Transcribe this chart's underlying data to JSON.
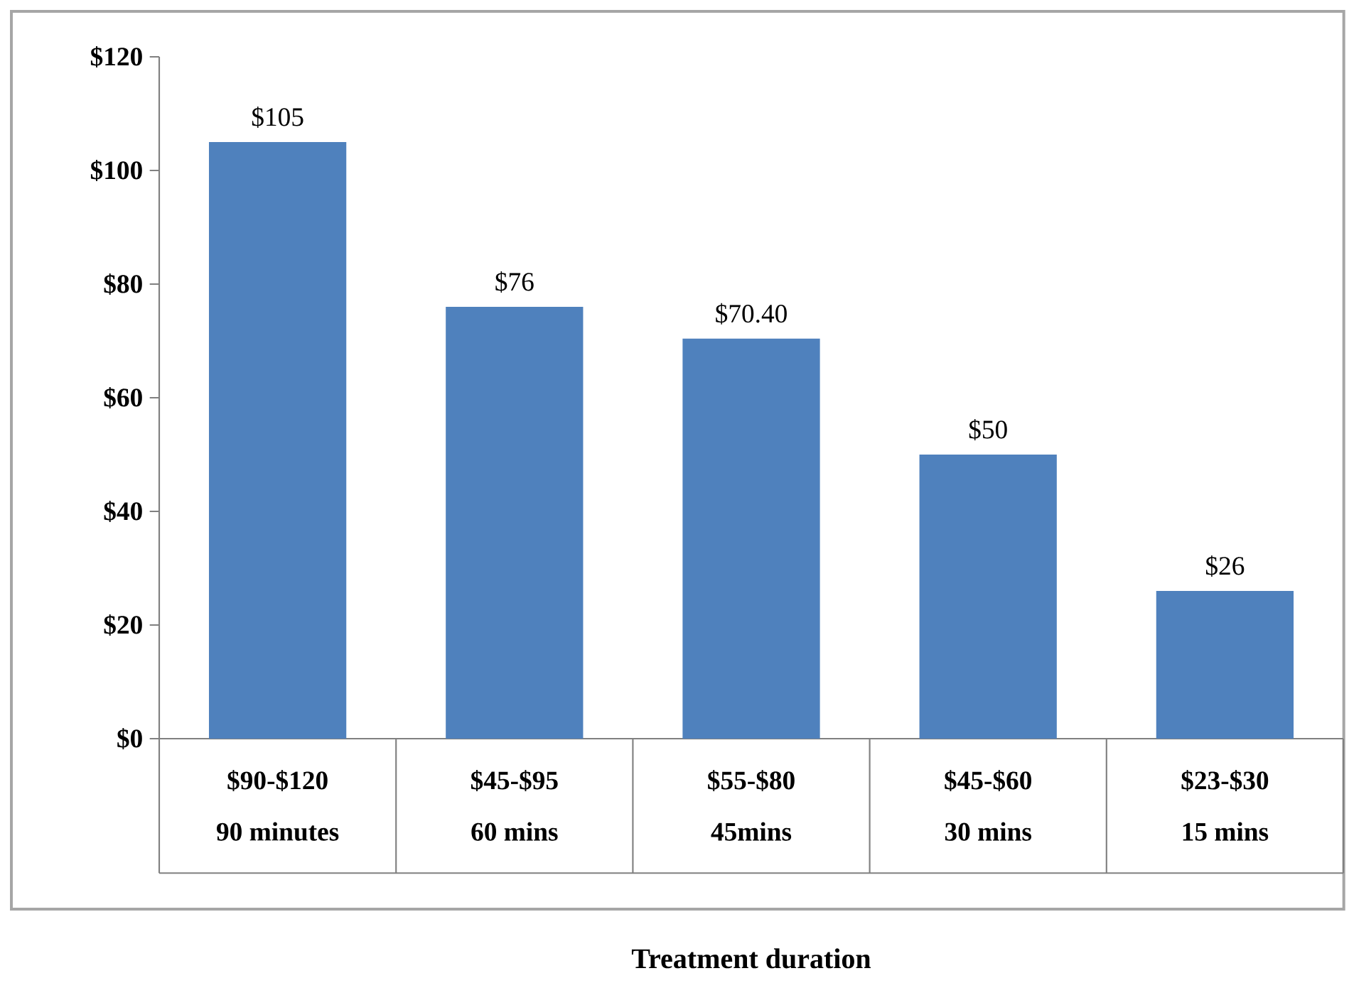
{
  "chart_data": {
    "type": "bar",
    "categories": [
      "$90-$120",
      "$45-$95",
      "$55-$80",
      "$45-$60",
      "$23-$30"
    ],
    "values": [
      105,
      76,
      70.4,
      50,
      26
    ],
    "value_labels": [
      "$105",
      "$76",
      "$70.40",
      "$50",
      "$26"
    ],
    "color": "#4f81bd",
    "ylim": [
      0,
      120
    ],
    "yticks": [
      {
        "value": 0,
        "label": "$0"
      },
      {
        "value": 20,
        "label": "$20"
      },
      {
        "value": 40,
        "label": "$40"
      },
      {
        "value": 60,
        "label": "$60"
      },
      {
        "value": 80,
        "label": "$80"
      },
      {
        "value": 100,
        "label": "$100"
      },
      {
        "value": 120,
        "label": "$120"
      }
    ],
    "annotations": [
      "90 minutes",
      "60 mins",
      "45mins",
      "30 mins",
      "15 mins",
      "Treatment duration"
    ],
    "grid": false
  }
}
